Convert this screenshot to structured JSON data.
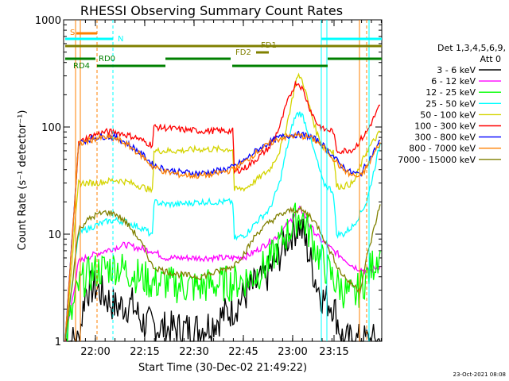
{
  "chart_data": {
    "type": "line",
    "title": "RHESSI Observing Summary Count Rates",
    "xlabel": "Start Time (30-Dec-02 21:49:22)",
    "ylabel": "Count Rate (s⁻¹ detector⁻¹)",
    "y_scale": "log",
    "ylim": [
      1,
      1000
    ],
    "xlim_minutes": [
      0,
      38
    ],
    "x_ticks": [
      {
        "label": "22:00",
        "minutes": 10.6
      },
      {
        "label": "22:15",
        "minutes": 25.6
      },
      {
        "label": "22:30",
        "minutes": 40.6
      },
      {
        "label": "22:45",
        "minutes": 55.6
      },
      {
        "label": "23:00",
        "minutes": 70.6
      },
      {
        "label": "23:15",
        "minutes": 85.6
      }
    ],
    "y_ticks": [
      {
        "label": "1",
        "value": 1
      },
      {
        "label": "10",
        "value": 10
      },
      {
        "label": "100",
        "value": 100
      },
      {
        "label": "1000",
        "value": 1000
      }
    ],
    "legend_header": [
      "Det 1,3,4,5,6,9,",
      "Att 0"
    ],
    "legend_placement": "right",
    "series": [
      {
        "name": "3 - 6 keV",
        "color": "#000000",
        "values": [
          [
            0,
            1.0
          ],
          [
            4,
            1.0
          ],
          [
            6,
            3.0
          ],
          [
            9,
            3.2
          ],
          [
            12,
            2.6
          ],
          [
            15,
            2.1
          ],
          [
            20,
            2.2
          ],
          [
            23,
            1.5
          ],
          [
            26,
            1.4
          ],
          [
            30,
            1.3
          ],
          [
            34,
            1.3
          ],
          [
            40,
            1.3
          ],
          [
            44,
            1.5
          ],
          [
            50,
            2.0
          ],
          [
            55,
            3.0
          ],
          [
            60,
            4.0
          ],
          [
            64,
            6.5
          ],
          [
            67,
            10.0
          ],
          [
            69,
            11.5
          ],
          [
            70,
            12.0
          ],
          [
            71,
            10.0
          ],
          [
            73,
            6.0
          ],
          [
            75,
            3.5
          ],
          [
            77,
            2.5
          ],
          [
            80,
            2.2
          ],
          [
            83,
            1.0
          ],
          [
            86,
            1.0
          ],
          [
            90,
            1.0
          ],
          [
            94,
            1.0
          ]
        ]
      },
      {
        "name": "6 - 12 keV",
        "color": "#ff00ff",
        "values": [
          [
            0,
            1.0
          ],
          [
            4,
            5.5
          ],
          [
            6,
            6.0
          ],
          [
            9,
            6.5
          ],
          [
            12,
            7.0
          ],
          [
            15,
            7.5
          ],
          [
            18,
            8.0
          ],
          [
            21,
            7.5
          ],
          [
            24,
            7.2
          ],
          [
            26,
            7.0
          ],
          [
            30,
            6.0
          ],
          [
            34,
            6.0
          ],
          [
            40,
            6.0
          ],
          [
            44,
            6.0
          ],
          [
            50,
            6.0
          ],
          [
            54,
            6.2
          ],
          [
            57,
            7.0
          ],
          [
            61,
            8.5
          ],
          [
            64,
            10.0
          ],
          [
            67,
            13.0
          ],
          [
            69,
            16.0
          ],
          [
            70,
            17.0
          ],
          [
            71,
            16.0
          ],
          [
            73,
            12.0
          ],
          [
            76,
            9.0
          ],
          [
            80,
            7.0
          ],
          [
            83,
            6.0
          ],
          [
            86,
            5.0
          ],
          [
            90,
            4.5
          ],
          [
            94,
            5.0
          ]
        ]
      },
      {
        "name": "12 - 25 keV",
        "color": "#00ff00",
        "values": [
          [
            0,
            1.0
          ],
          [
            4,
            3.2
          ],
          [
            6,
            4.0
          ],
          [
            9,
            4.5
          ],
          [
            12,
            4.8
          ],
          [
            15,
            5.0
          ],
          [
            18,
            4.6
          ],
          [
            21,
            4.2
          ],
          [
            24,
            3.8
          ],
          [
            26,
            3.5
          ],
          [
            30,
            3.5
          ],
          [
            34,
            3.3
          ],
          [
            40,
            3.2
          ],
          [
            44,
            3.4
          ],
          [
            50,
            3.5
          ],
          [
            54,
            3.8
          ],
          [
            57,
            4.2
          ],
          [
            61,
            5.5
          ],
          [
            64,
            8.0
          ],
          [
            67,
            11.0
          ],
          [
            69,
            14.0
          ],
          [
            70,
            15.0
          ],
          [
            71,
            14.0
          ],
          [
            73,
            10.0
          ],
          [
            76,
            6.0
          ],
          [
            80,
            3.8
          ],
          [
            83,
            3.0
          ],
          [
            86,
            2.5
          ],
          [
            90,
            4.0
          ],
          [
            94,
            7.0
          ]
        ]
      },
      {
        "name": "25 - 50 keV",
        "color": "#00ffff",
        "values": [
          [
            0,
            1.0
          ],
          [
            4,
            10.0
          ],
          [
            6,
            11.0
          ],
          [
            9,
            12.0
          ],
          [
            12,
            13.0
          ],
          [
            15,
            13.5
          ],
          [
            18,
            13.0
          ],
          [
            21,
            12.0
          ],
          [
            24,
            11.0
          ],
          [
            26,
            9.5
          ],
          [
            26.5,
            20.0
          ],
          [
            30,
            19.0
          ],
          [
            34,
            19.0
          ],
          [
            40,
            20.0
          ],
          [
            50,
            20.0
          ],
          [
            50.5,
            9.0
          ],
          [
            54,
            10.0
          ],
          [
            57,
            13.0
          ],
          [
            61,
            17.0
          ],
          [
            64,
            30.0
          ],
          [
            66,
            60.0
          ],
          [
            68,
            110.0
          ],
          [
            69,
            130.0
          ],
          [
            70,
            135.0
          ],
          [
            71,
            125.0
          ],
          [
            73,
            80.0
          ],
          [
            75,
            50.0
          ],
          [
            77,
            30.0
          ],
          [
            80,
            25.0
          ],
          [
            81,
            10.0
          ],
          [
            83,
            10.0
          ],
          [
            86,
            12.0
          ],
          [
            90,
            20.0
          ],
          [
            94,
            70.0
          ]
        ]
      },
      {
        "name": "50 - 100 keV",
        "color": "#d4d400",
        "values": [
          [
            0,
            1.0
          ],
          [
            4,
            30.0
          ],
          [
            6,
            30.0
          ],
          [
            9,
            30.0
          ],
          [
            12,
            31.0
          ],
          [
            15,
            32.0
          ],
          [
            18,
            31.0
          ],
          [
            21,
            29.0
          ],
          [
            24,
            27.0
          ],
          [
            26,
            25.0
          ],
          [
            26.5,
            60.0
          ],
          [
            30,
            60.0
          ],
          [
            34,
            60.0
          ],
          [
            40,
            62.0
          ],
          [
            50,
            62.0
          ],
          [
            50.5,
            26.0
          ],
          [
            54,
            27.0
          ],
          [
            57,
            32.0
          ],
          [
            61,
            40.0
          ],
          [
            64,
            60.0
          ],
          [
            66,
            100.0
          ],
          [
            68,
            200.0
          ],
          [
            69,
            280.0
          ],
          [
            70,
            300.0
          ],
          [
            71,
            260.0
          ],
          [
            73,
            150.0
          ],
          [
            75,
            90.0
          ],
          [
            77,
            65.0
          ],
          [
            80,
            60.0
          ],
          [
            81,
            28.0
          ],
          [
            83,
            28.0
          ],
          [
            86,
            30.0
          ],
          [
            90,
            60.0
          ],
          [
            94,
            90.0
          ]
        ]
      },
      {
        "name": "100 - 300 keV",
        "color": "#ff0000",
        "values": [
          [
            0,
            1.0
          ],
          [
            4,
            70.0
          ],
          [
            6,
            78.0
          ],
          [
            9,
            85.0
          ],
          [
            12,
            90.0
          ],
          [
            15,
            90.0
          ],
          [
            18,
            85.0
          ],
          [
            21,
            80.0
          ],
          [
            24,
            72.0
          ],
          [
            26,
            68.0
          ],
          [
            26.5,
            100.0
          ],
          [
            30,
            98.0
          ],
          [
            34,
            95.0
          ],
          [
            40,
            92.0
          ],
          [
            50,
            92.0
          ],
          [
            50.5,
            38.0
          ],
          [
            54,
            42.0
          ],
          [
            57,
            50.0
          ],
          [
            61,
            65.0
          ],
          [
            64,
            100.0
          ],
          [
            66,
            160.0
          ],
          [
            68,
            230.0
          ],
          [
            69,
            260.0
          ],
          [
            70,
            250.0
          ],
          [
            71,
            220.0
          ],
          [
            73,
            150.0
          ],
          [
            75,
            110.0
          ],
          [
            77,
            95.0
          ],
          [
            80,
            92.0
          ],
          [
            81,
            60.0
          ],
          [
            83,
            60.0
          ],
          [
            86,
            62.0
          ],
          [
            90,
            90.0
          ],
          [
            94,
            160.0
          ]
        ]
      },
      {
        "name": "300 - 800 keV",
        "color": "#0000ff",
        "values": [
          [
            0,
            1.0
          ],
          [
            4,
            70.0
          ],
          [
            6,
            75.0
          ],
          [
            9,
            80.0
          ],
          [
            12,
            82.0
          ],
          [
            15,
            80.0
          ],
          [
            18,
            72.0
          ],
          [
            21,
            62.0
          ],
          [
            24,
            52.0
          ],
          [
            26,
            45.0
          ],
          [
            30,
            40.0
          ],
          [
            34,
            38.0
          ],
          [
            40,
            37.0
          ],
          [
            44,
            38.0
          ],
          [
            50,
            42.0
          ],
          [
            54,
            50.0
          ],
          [
            57,
            60.0
          ],
          [
            61,
            72.0
          ],
          [
            64,
            80.0
          ],
          [
            67,
            84.0
          ],
          [
            70,
            85.0
          ],
          [
            73,
            82.0
          ],
          [
            76,
            72.0
          ],
          [
            79,
            58.0
          ],
          [
            82,
            45.0
          ],
          [
            85,
            38.0
          ],
          [
            88,
            36.0
          ],
          [
            90,
            45.0
          ],
          [
            94,
            75.0
          ]
        ]
      },
      {
        "name": "800 - 7000 keV",
        "color": "#ff8000",
        "values": [
          [
            0,
            1.0
          ],
          [
            4,
            68.0
          ],
          [
            6,
            73.0
          ],
          [
            9,
            78.0
          ],
          [
            12,
            80.0
          ],
          [
            15,
            78.0
          ],
          [
            18,
            70.0
          ],
          [
            21,
            60.0
          ],
          [
            24,
            50.0
          ],
          [
            26,
            43.0
          ],
          [
            30,
            38.0
          ],
          [
            34,
            36.0
          ],
          [
            40,
            35.0
          ],
          [
            44,
            36.0
          ],
          [
            50,
            40.0
          ],
          [
            54,
            48.0
          ],
          [
            57,
            58.0
          ],
          [
            61,
            70.0
          ],
          [
            64,
            78.0
          ],
          [
            67,
            82.0
          ],
          [
            70,
            83.0
          ],
          [
            73,
            80.0
          ],
          [
            76,
            70.0
          ],
          [
            79,
            56.0
          ],
          [
            82,
            43.0
          ],
          [
            85,
            36.0
          ],
          [
            88,
            34.0
          ],
          [
            90,
            42.0
          ],
          [
            94,
            72.0
          ]
        ]
      },
      {
        "name": "7000 - 15000 keV",
        "color": "#808000",
        "values": [
          [
            0,
            1.0
          ],
          [
            4,
            11.0
          ],
          [
            6,
            13.0
          ],
          [
            9,
            15.0
          ],
          [
            12,
            16.0
          ],
          [
            15,
            15.5
          ],
          [
            18,
            13.0
          ],
          [
            21,
            10.0
          ],
          [
            24,
            7.0
          ],
          [
            26,
            5.0
          ],
          [
            30,
            4.5
          ],
          [
            34,
            4.2
          ],
          [
            40,
            4.0
          ],
          [
            44,
            4.3
          ],
          [
            50,
            5.0
          ],
          [
            54,
            7.0
          ],
          [
            57,
            10.0
          ],
          [
            61,
            13.0
          ],
          [
            64,
            15.0
          ],
          [
            67,
            16.5
          ],
          [
            70,
            17.0
          ],
          [
            73,
            15.0
          ],
          [
            76,
            11.0
          ],
          [
            79,
            7.0
          ],
          [
            82,
            4.5
          ],
          [
            85,
            3.5
          ],
          [
            88,
            3.0
          ],
          [
            90,
            6.0
          ],
          [
            94,
            19.0
          ]
        ]
      }
    ],
    "state_bars": [
      {
        "label": "S",
        "color": "#ff8000"
      },
      {
        "label": "N",
        "color": "#00ffff"
      },
      {
        "label": "FD1",
        "color": "#808000"
      },
      {
        "label": "FD2",
        "color": "#808000"
      },
      {
        "label": "RD0",
        "color": "#008000"
      },
      {
        "label": "RD4",
        "color": "#008000"
      }
    ],
    "timestamp": "23-Oct-2021 08:08"
  }
}
